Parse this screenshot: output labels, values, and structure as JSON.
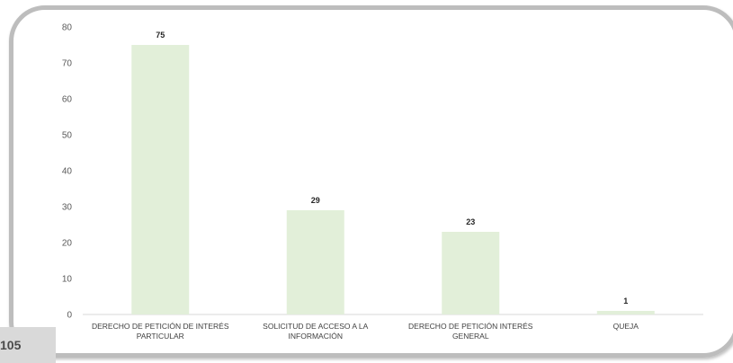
{
  "page_number": "105",
  "chart_data": {
    "type": "bar",
    "categories": [
      [
        "DERECHO DE PETICIÓN DE INTERÉS",
        "PARTICULAR"
      ],
      [
        "SOLICITUD DE ACCESO A LA",
        "INFORMACIÓN"
      ],
      [
        "DERECHO DE PETICIÓN INTERÉS",
        "GENERAL"
      ],
      [
        "QUEJA"
      ]
    ],
    "values": [
      75,
      29,
      23,
      1
    ],
    "data_labels": [
      "75",
      "29",
      "23",
      "1"
    ],
    "title": "",
    "xlabel": "",
    "ylabel": "",
    "ylim": [
      0,
      80
    ],
    "yticks": [
      0,
      10,
      20,
      30,
      40,
      50,
      60,
      70,
      80
    ],
    "grid": false,
    "legend": "none",
    "colors": {
      "bar": "#e2efd9",
      "axis": "#d9d9d9",
      "frame": "#bdbdbd",
      "tab": "#d9d9d9"
    }
  }
}
